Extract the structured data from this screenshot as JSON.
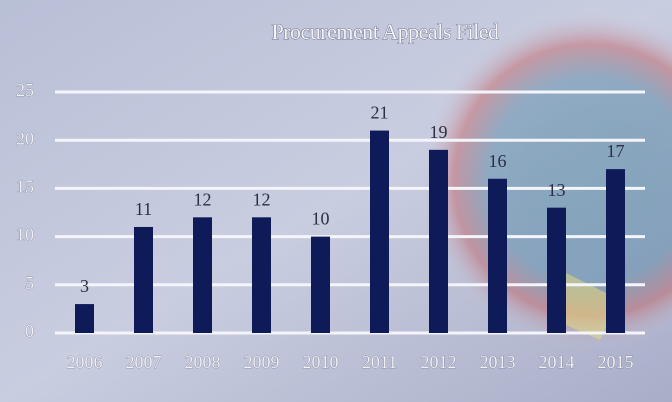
{
  "chart_data": {
    "type": "bar",
    "title": "Procurement Appeals Filed",
    "categories": [
      "2006",
      "2007",
      "2008",
      "2009",
      "2010",
      "2011",
      "2012",
      "2013",
      "2014",
      "2015"
    ],
    "values": [
      3,
      11,
      12,
      12,
      10,
      21,
      19,
      16,
      13,
      17
    ],
    "color": "#0e1b58",
    "ylim": [
      0,
      25
    ],
    "yticks": [
      0,
      5,
      10,
      15,
      20,
      25
    ],
    "grid": true
  }
}
